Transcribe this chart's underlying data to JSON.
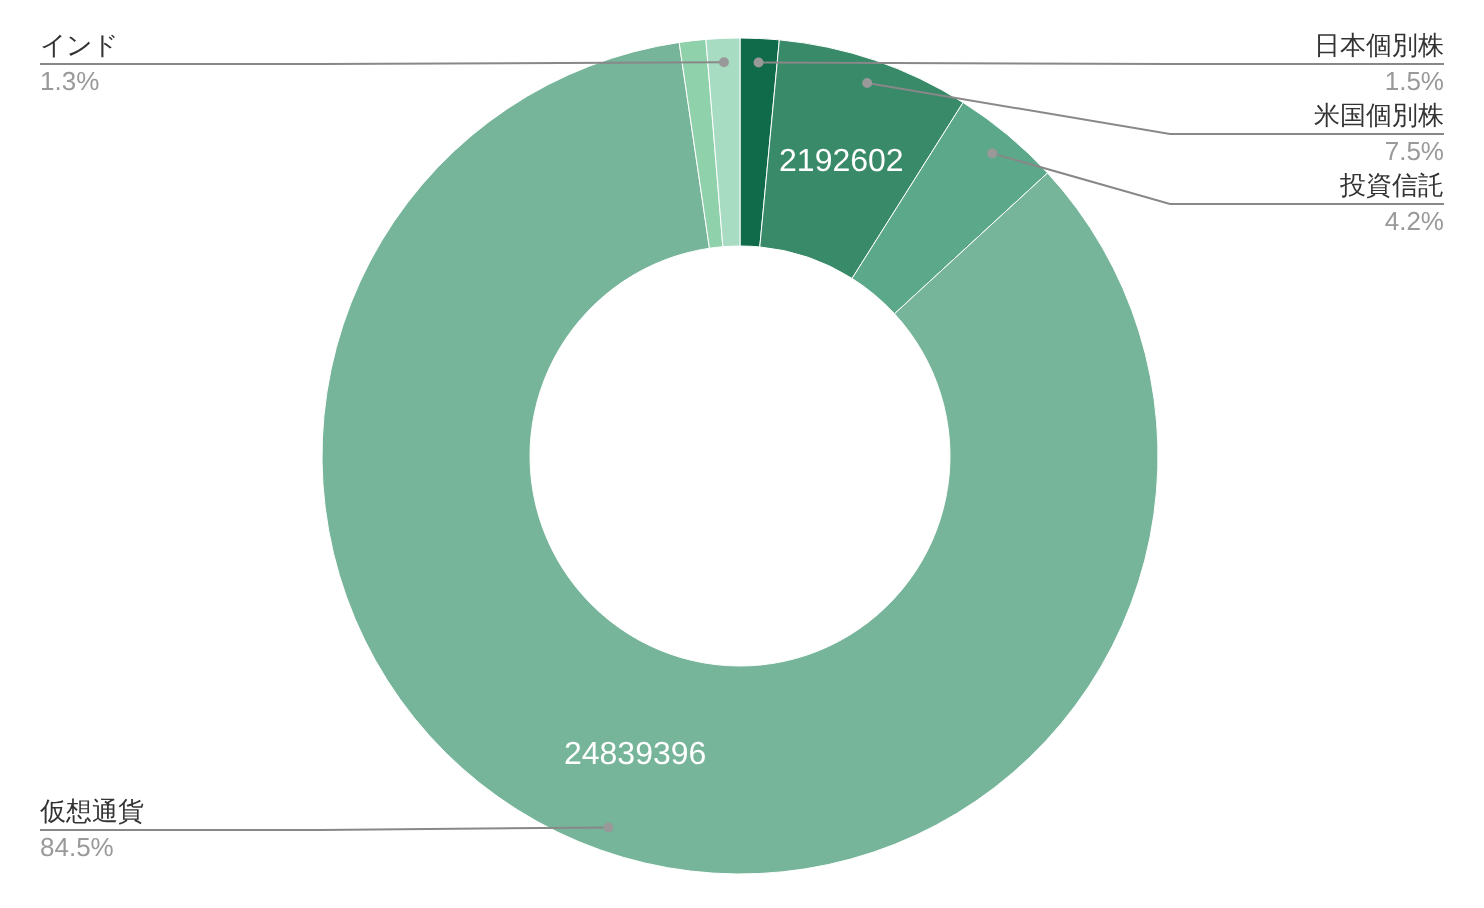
{
  "chart_data": {
    "type": "donut",
    "categories": [
      "日本個別株",
      "米国個別株",
      "投資信託",
      "仮想通貨",
      null,
      "インド"
    ],
    "values": [
      441000,
      2192602,
      1234000,
      24839396,
      301000,
      382000
    ],
    "colors": [
      "#0f6b4a",
      "#388a68",
      "#5ba88a",
      "#77b59b",
      "#8fd1ab",
      "#a8dcc2"
    ],
    "value_labels": [
      null,
      "2192602",
      null,
      "24839396",
      null,
      null
    ],
    "annotations": [
      "1.5%",
      "7.5%",
      "4.2%",
      "84.5%",
      "1.3%"
    ]
  }
}
